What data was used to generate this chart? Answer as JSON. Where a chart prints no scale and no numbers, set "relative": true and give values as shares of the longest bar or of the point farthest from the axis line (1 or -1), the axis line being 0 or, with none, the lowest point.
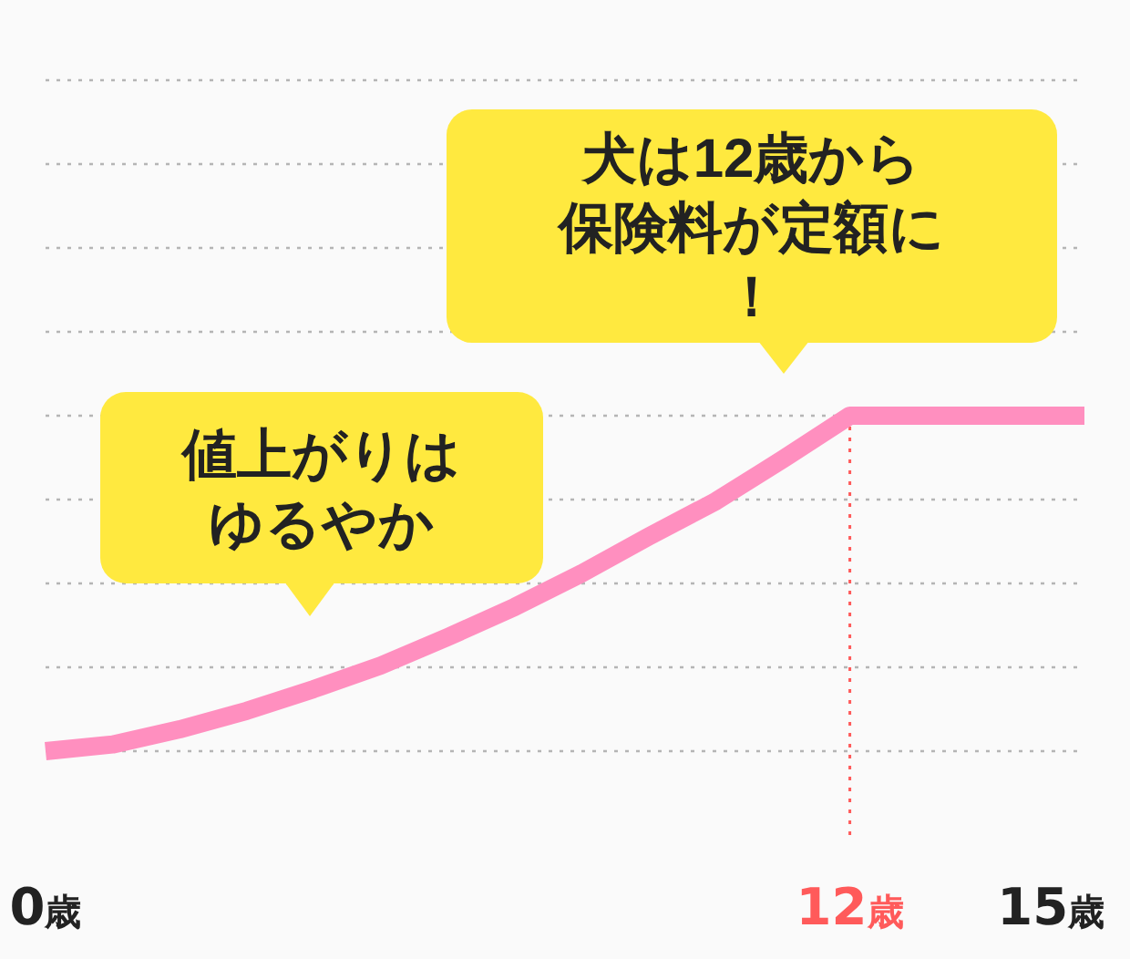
{
  "chart_data": {
    "type": "line",
    "relative": true,
    "x": [
      0,
      1,
      2,
      3,
      4,
      5,
      6,
      7,
      8,
      9,
      10,
      11,
      12,
      15.5
    ],
    "xlim": [
      0,
      15.5
    ],
    "xticks": [
      {
        "value": 0,
        "label": "0歳"
      },
      {
        "value": 12,
        "label": "12歳"
      },
      {
        "value": 15,
        "label": "15歳"
      }
    ],
    "series": [
      {
        "color": "#ff8fbf",
        "values": [
          0,
          0.02,
          0.065,
          0.12,
          0.185,
          0.255,
          0.34,
          0.43,
          0.53,
          0.64,
          0.745,
          0.87,
          1,
          1
        ]
      }
    ],
    "ref_lines": [
      {
        "axis": "x",
        "value": 12,
        "color": "#ff5a5a",
        "line_style": "dotted"
      }
    ],
    "grid": "y",
    "marker": "none",
    "line_style": "solid",
    "annotations": [
      "犬は12歳から保険料が定額に！",
      "値上がりはゆるやか"
    ]
  }
}
